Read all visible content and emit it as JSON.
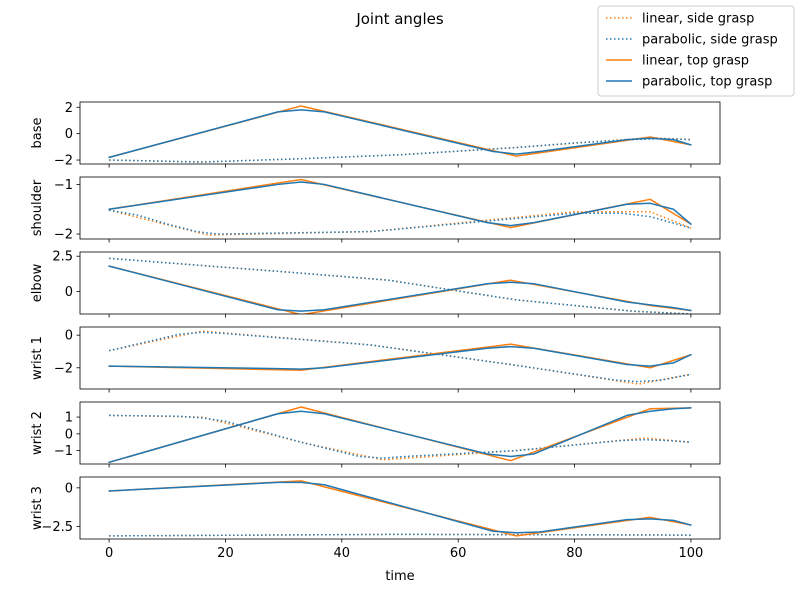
{
  "figure": {
    "title": "Joint angles",
    "xlabel": "time"
  },
  "legend": {
    "placement": "top-right",
    "entries": [
      {
        "label": "linear, side grasp",
        "color": "#ff7f0e",
        "style": "dotted"
      },
      {
        "label": "parabolic, side grasp",
        "color": "#1f77b4",
        "style": "dotted"
      },
      {
        "label": "linear, top grasp",
        "color": "#ff7f0e",
        "style": "solid"
      },
      {
        "label": "parabolic, top grasp",
        "color": "#1f77b4",
        "style": "solid"
      }
    ]
  },
  "chart_data": {
    "type": "line",
    "title": "Joint angles",
    "xlabel": "time",
    "xlim": [
      -5,
      105
    ],
    "xticks": [
      0,
      20,
      40,
      60,
      80,
      100
    ],
    "grid": false,
    "sharex": true,
    "subplots": [
      {
        "ylabel": "base",
        "ylim": [
          -2.3,
          2.4
        ],
        "yticks": [
          -2,
          0,
          2
        ],
        "series": [
          {
            "name": "linear, side grasp",
            "color": "#ff7f0e",
            "style": "dotted",
            "x": [
              0,
              16,
              33,
              50,
              70,
              93,
              100
            ],
            "y": [
              -2.0,
              -2.15,
              -1.9,
              -1.6,
              -1.05,
              -0.3,
              -0.45
            ]
          },
          {
            "name": "parabolic, side grasp",
            "color": "#1f77b4",
            "style": "dotted",
            "x": [
              0,
              16,
              33,
              50,
              70,
              80,
              90,
              95,
              100
            ],
            "y": [
              -2.0,
              -2.15,
              -1.9,
              -1.6,
              -1.05,
              -0.7,
              -0.45,
              -0.38,
              -0.45
            ]
          },
          {
            "name": "linear, top grasp",
            "color": "#ff7f0e",
            "style": "solid",
            "x": [
              0,
              33,
              70,
              93,
              100
            ],
            "y": [
              -1.8,
              2.1,
              -1.7,
              -0.25,
              -0.85
            ]
          },
          {
            "name": "parabolic, top grasp",
            "color": "#1f77b4",
            "style": "solid",
            "x": [
              0,
              29,
              33,
              37,
              66,
              70,
              74,
              89,
              93,
              97,
              100
            ],
            "y": [
              -1.8,
              1.65,
              1.8,
              1.65,
              -1.35,
              -1.55,
              -1.35,
              -0.45,
              -0.35,
              -0.45,
              -0.85
            ]
          }
        ]
      },
      {
        "ylabel": "shoulder",
        "ylim": [
          -2.1,
          -0.85
        ],
        "yticks": [
          -2,
          -1
        ],
        "series": [
          {
            "name": "linear, side grasp",
            "color": "#ff7f0e",
            "style": "dotted",
            "x": [
              0,
              17,
              45,
              80,
              93,
              100
            ],
            "y": [
              -1.52,
              -2.02,
              -1.95,
              -1.55,
              -1.55,
              -1.88
            ]
          },
          {
            "name": "parabolic, side grasp",
            "color": "#1f77b4",
            "style": "dotted",
            "x": [
              0,
              5,
              10,
              15,
              17,
              19,
              45,
              80,
              88,
              93,
              97,
              100
            ],
            "y": [
              -1.52,
              -1.62,
              -1.8,
              -1.95,
              -1.98,
              -2.0,
              -1.95,
              -1.58,
              -1.58,
              -1.65,
              -1.78,
              -1.88
            ]
          },
          {
            "name": "linear, top grasp",
            "color": "#ff7f0e",
            "style": "solid",
            "x": [
              0,
              33,
              69,
              93,
              100
            ],
            "y": [
              -1.5,
              -0.9,
              -1.87,
              -1.3,
              -1.8
            ]
          },
          {
            "name": "parabolic, top grasp",
            "color": "#1f77b4",
            "style": "solid",
            "x": [
              0,
              29,
              33,
              37,
              65,
              69,
              73,
              89,
              93,
              97,
              100
            ],
            "y": [
              -1.5,
              -1.0,
              -0.95,
              -1.0,
              -1.77,
              -1.83,
              -1.77,
              -1.4,
              -1.38,
              -1.5,
              -1.8
            ]
          }
        ]
      },
      {
        "ylabel": "elbow",
        "ylim": [
          -1.6,
          2.8
        ],
        "yticks": [
          0.0,
          2.5
        ],
        "series": [
          {
            "name": "linear, side grasp",
            "color": "#ff7f0e",
            "style": "dotted",
            "x": [
              0,
              33,
              48,
              70,
              90,
              100
            ],
            "y": [
              2.35,
              1.3,
              0.8,
              -0.6,
              -1.4,
              -1.6
            ]
          },
          {
            "name": "parabolic, side grasp",
            "color": "#1f77b4",
            "style": "dotted",
            "x": [
              0,
              33,
              48,
              70,
              90,
              100
            ],
            "y": [
              2.35,
              1.3,
              0.8,
              -0.6,
              -1.4,
              -1.6
            ]
          },
          {
            "name": "linear, top grasp",
            "color": "#ff7f0e",
            "style": "solid",
            "x": [
              0,
              33,
              69,
              93,
              100
            ],
            "y": [
              1.8,
              -1.65,
              0.8,
              -1.0,
              -1.35
            ]
          },
          {
            "name": "parabolic, top grasp",
            "color": "#1f77b4",
            "style": "solid",
            "x": [
              0,
              29,
              33,
              37,
              65,
              69,
              73,
              89,
              93,
              97,
              100
            ],
            "y": [
              1.8,
              -1.3,
              -1.4,
              -1.3,
              0.55,
              0.65,
              0.55,
              -0.75,
              -0.95,
              -1.15,
              -1.35
            ]
          }
        ]
      },
      {
        "ylabel": "wrist 1",
        "ylim": [
          -3.3,
          0.5
        ],
        "yticks": [
          -2,
          0
        ],
        "series": [
          {
            "name": "linear, side grasp",
            "color": "#ff7f0e",
            "style": "dotted",
            "x": [
              0,
              16,
              45,
              70,
              91,
              100
            ],
            "y": [
              -0.95,
              0.25,
              -0.6,
              -1.85,
              -3.0,
              -2.4
            ]
          },
          {
            "name": "parabolic, side grasp",
            "color": "#1f77b4",
            "style": "dotted",
            "x": [
              0,
              12,
              16,
              20,
              45,
              70,
              87,
              91,
              95,
              100
            ],
            "y": [
              -0.95,
              0.05,
              0.18,
              0.1,
              -0.6,
              -1.85,
              -2.75,
              -2.85,
              -2.75,
              -2.4
            ]
          },
          {
            "name": "linear, top grasp",
            "color": "#ff7f0e",
            "style": "solid",
            "x": [
              0,
              33,
              69,
              93,
              100
            ],
            "y": [
              -1.9,
              -2.15,
              -0.55,
              -2.0,
              -1.2
            ]
          },
          {
            "name": "parabolic, top grasp",
            "color": "#1f77b4",
            "style": "solid",
            "x": [
              0,
              29,
              33,
              37,
              65,
              69,
              73,
              89,
              93,
              97,
              100
            ],
            "y": [
              -1.9,
              -2.05,
              -2.08,
              -2.0,
              -0.8,
              -0.7,
              -0.8,
              -1.8,
              -1.9,
              -1.7,
              -1.2
            ]
          }
        ]
      },
      {
        "ylabel": "wrist 2",
        "ylim": [
          -1.8,
          1.9
        ],
        "yticks": [
          -1,
          0,
          1
        ],
        "series": [
          {
            "name": "linear, side grasp",
            "color": "#ff7f0e",
            "style": "dotted",
            "x": [
              0,
              16,
              33,
              47,
              70,
              92,
              100
            ],
            "y": [
              1.1,
              1.0,
              -0.5,
              -1.55,
              -1.0,
              -0.25,
              -0.5
            ]
          },
          {
            "name": "parabolic, side grasp",
            "color": "#1f77b4",
            "style": "dotted",
            "x": [
              0,
              12,
              16,
              20,
              33,
              43,
              47,
              51,
              70,
              88,
              92,
              96,
              100
            ],
            "y": [
              1.1,
              1.05,
              0.95,
              0.75,
              -0.5,
              -1.35,
              -1.45,
              -1.35,
              -1.0,
              -0.4,
              -0.35,
              -0.4,
              -0.5
            ]
          },
          {
            "name": "linear, top grasp",
            "color": "#ff7f0e",
            "style": "solid",
            "x": [
              0,
              33,
              69,
              93,
              100
            ],
            "y": [
              -1.7,
              1.6,
              -1.6,
              1.5,
              1.55
            ]
          },
          {
            "name": "parabolic, top grasp",
            "color": "#1f77b4",
            "style": "solid",
            "x": [
              0,
              29,
              33,
              37,
              65,
              69,
              73,
              89,
              93,
              97,
              100
            ],
            "y": [
              -1.7,
              1.2,
              1.35,
              1.2,
              -1.2,
              -1.35,
              -1.2,
              1.1,
              1.35,
              1.5,
              1.55
            ]
          }
        ]
      },
      {
        "ylabel": "wrist 3",
        "ylim": [
          -3.3,
          0.7
        ],
        "yticks": [
          -2.5,
          0.0
        ],
        "series": [
          {
            "name": "linear, side grasp",
            "color": "#ff7f0e",
            "style": "dotted",
            "x": [
              0,
              50,
              100
            ],
            "y": [
              -3.1,
              -3.0,
              -3.05
            ]
          },
          {
            "name": "parabolic, side grasp",
            "color": "#1f77b4",
            "style": "dotted",
            "x": [
              0,
              50,
              100
            ],
            "y": [
              -3.1,
              -3.0,
              -3.05
            ]
          },
          {
            "name": "linear, top grasp",
            "color": "#ff7f0e",
            "style": "solid",
            "x": [
              0,
              33,
              70,
              93,
              100
            ],
            "y": [
              -0.2,
              0.45,
              -3.1,
              -1.9,
              -2.4
            ]
          },
          {
            "name": "parabolic, top grasp",
            "color": "#1f77b4",
            "style": "solid",
            "x": [
              0,
              29,
              33,
              37,
              66,
              70,
              74,
              89,
              93,
              97,
              100
            ],
            "y": [
              -0.2,
              0.35,
              0.35,
              0.2,
              -2.8,
              -2.9,
              -2.85,
              -2.05,
              -2.0,
              -2.1,
              -2.4
            ]
          }
        ]
      }
    ]
  }
}
